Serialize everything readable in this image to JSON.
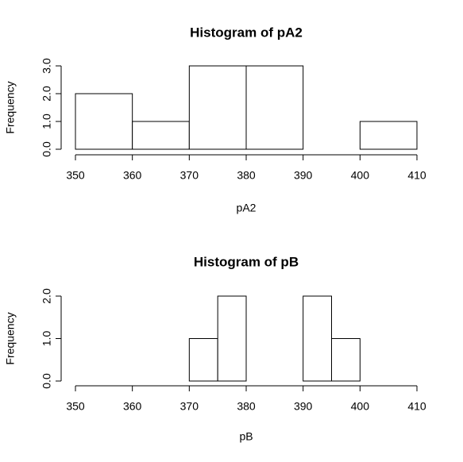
{
  "chart_data": [
    {
      "type": "histogram",
      "title": "Histogram of pA2",
      "xlabel": "pA2",
      "ylabel": "Frequency",
      "bins": [
        350,
        360,
        370,
        380,
        390,
        400,
        410
      ],
      "counts": [
        2,
        1,
        3,
        3,
        0,
        1
      ],
      "color": "#ffffff",
      "xlim": [
        350,
        410
      ],
      "xticks": [
        350,
        360,
        370,
        380,
        390,
        400,
        410
      ],
      "ylim": [
        0,
        3
      ],
      "yticks": [
        {
          "value": 0,
          "label": "0.0"
        },
        {
          "value": 1,
          "label": "1.0"
        },
        {
          "value": 2,
          "label": "2.0"
        },
        {
          "value": 3,
          "label": "3.0"
        }
      ]
    },
    {
      "type": "histogram",
      "title": "Histogram of pB",
      "xlabel": "pB",
      "ylabel": "Frequency",
      "bins": [
        370,
        375,
        380,
        385,
        390,
        395,
        400
      ],
      "counts": [
        1,
        2,
        0,
        0,
        2,
        1
      ],
      "color": "#ffffff",
      "xlim": [
        350,
        410
      ],
      "xticks": [
        350,
        360,
        370,
        380,
        390,
        400,
        410
      ],
      "ylim": [
        0,
        2
      ],
      "yticks": [
        {
          "value": 0,
          "label": "0.0"
        },
        {
          "value": 1,
          "label": "1.0"
        },
        {
          "value": 2,
          "label": "2.0"
        }
      ]
    }
  ]
}
